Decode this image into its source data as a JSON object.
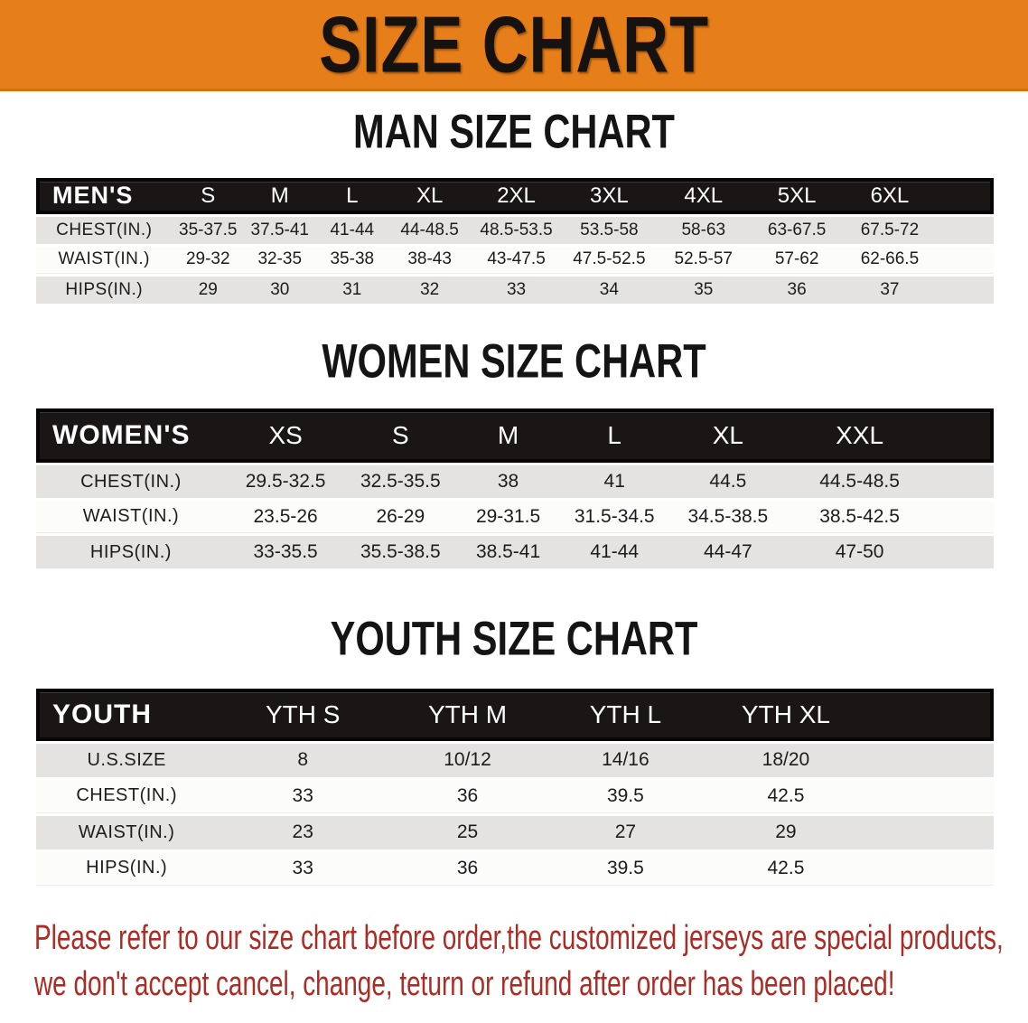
{
  "banner": {
    "title": "SIZE CHART"
  },
  "sections": [
    {
      "id": "men",
      "title": "MAN SIZE CHART",
      "header_label": "MEN'S",
      "columns": [
        "S",
        "M",
        "L",
        "XL",
        "2XL",
        "3XL",
        "4XL",
        "5XL",
        "6XL"
      ],
      "rows": [
        {
          "label": "CHEST(IN.)",
          "values": [
            "35-37.5",
            "37.5-41",
            "41-44",
            "44-48.5",
            "48.5-53.5",
            "53.5-58",
            "58-63",
            "63-67.5",
            "67.5-72"
          ]
        },
        {
          "label": "WAIST(IN.)",
          "values": [
            "29-32",
            "32-35",
            "35-38",
            "38-43",
            "43-47.5",
            "47.5-52.5",
            "52.5-57",
            "57-62",
            "62-66.5"
          ]
        },
        {
          "label": "HIPS(IN.)",
          "values": [
            "29",
            "30",
            "31",
            "32",
            "33",
            "34",
            "35",
            "36",
            "37"
          ]
        }
      ]
    },
    {
      "id": "women",
      "title": "WOMEN SIZE CHART",
      "header_label": "WOMEN'S",
      "columns": [
        "XS",
        "S",
        "M",
        "L",
        "XL",
        "XXL"
      ],
      "rows": [
        {
          "label": "CHEST(IN.)",
          "values": [
            "29.5-32.5",
            "32.5-35.5",
            "38",
            "41",
            "44.5",
            "44.5-48.5"
          ]
        },
        {
          "label": "WAIST(IN.)",
          "values": [
            "23.5-26",
            "26-29",
            "29-31.5",
            "31.5-34.5",
            "34.5-38.5",
            "38.5-42.5"
          ]
        },
        {
          "label": "HIPS(IN.)",
          "values": [
            "33-35.5",
            "35.5-38.5",
            "38.5-41",
            "41-44",
            "44-47",
            "47-50"
          ]
        }
      ]
    },
    {
      "id": "youth",
      "title": "YOUTH SIZE CHART",
      "header_label": "YOUTH",
      "columns": [
        "YTH S",
        "YTH M",
        "YTH L",
        "YTH XL"
      ],
      "rows": [
        {
          "label": "U.S.SIZE",
          "values": [
            "8",
            "10/12",
            "14/16",
            "18/20"
          ]
        },
        {
          "label": "CHEST(IN.)",
          "values": [
            "33",
            "36",
            "39.5",
            "42.5"
          ]
        },
        {
          "label": "WAIST(IN.)",
          "values": [
            "23",
            "25",
            "27",
            "29"
          ]
        },
        {
          "label": "HIPS(IN.)",
          "values": [
            "33",
            "36",
            "39.5",
            "42.5"
          ]
        }
      ]
    }
  ],
  "disclaimer": {
    "line1": "Please refer to our size chart before order,the customized jerseys are special products,",
    "line2": "we don't accept cancel, change, teturn or refund after order has been placed!"
  },
  "colors": {
    "banner_bg": "#E67E19",
    "table_header_bg": "#1B1616",
    "row_gray": "#E4E3E1",
    "row_white": "#FCFCFB",
    "disclaimer_red": "#AC2B24",
    "title_black": "#141414"
  }
}
